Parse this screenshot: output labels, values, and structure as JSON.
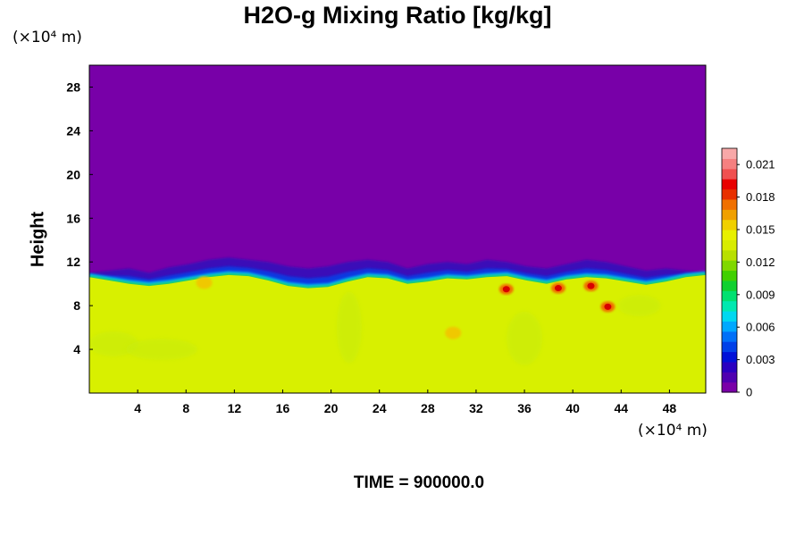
{
  "chart_data": {
    "type": "heatmap",
    "title": "H2O-g Mixing Ratio [kg/kg]",
    "xlabel": "",
    "ylabel": "Height",
    "x_unit": "(×10⁴ m)",
    "y_unit": "(×10⁴ m)",
    "xlim": [
      0,
      51
    ],
    "ylim": [
      0,
      30
    ],
    "x_ticks": [
      4,
      8,
      12,
      16,
      20,
      24,
      28,
      32,
      36,
      40,
      44,
      48
    ],
    "y_ticks": [
      4,
      8,
      12,
      16,
      20,
      24,
      28
    ],
    "colorbar": {
      "range": [
        0,
        0.0225
      ],
      "ticks": [
        "0",
        "0.003",
        "0.006",
        "0.009",
        "0.012",
        "0.015",
        "0.018",
        "0.021"
      ],
      "colors": [
        "#7a00a8",
        "#4f00b0",
        "#2a00c0",
        "#0010d8",
        "#0040e8",
        "#0070f8",
        "#00a8ff",
        "#00d8f0",
        "#00e8b0",
        "#00e070",
        "#10d030",
        "#40d000",
        "#80d800",
        "#b8e000",
        "#d8ec00",
        "#e8f000",
        "#f0d000",
        "#f0a000",
        "#f07000",
        "#e83000",
        "#e80000",
        "#f05050",
        "#f58080",
        "#f8a8a8"
      ]
    },
    "background_color": "#7800a8",
    "moist_layer_color": "#d8f000",
    "moist_top_height": [
      10.6,
      10.3,
      10.0,
      9.8,
      10.0,
      10.3,
      10.6,
      10.8,
      10.7,
      10.3,
      9.8,
      9.6,
      9.7,
      10.2,
      10.6,
      10.5,
      10.0,
      10.2,
      10.5,
      10.4,
      10.6,
      10.7,
      10.3,
      10.0,
      10.4,
      10.6,
      10.5,
      10.2,
      9.9,
      10.2,
      10.6,
      10.8
    ],
    "dry_layer_top_height": [
      11.0,
      11.2,
      11.4,
      11.0,
      11.5,
      11.8,
      12.2,
      12.4,
      12.2,
      12.0,
      11.6,
      11.4,
      11.6,
      12.0,
      12.2,
      12.0,
      11.4,
      11.8,
      12.0,
      11.8,
      12.2,
      12.0,
      11.6,
      11.4,
      11.8,
      12.2,
      12.0,
      11.6,
      11.2,
      11.4,
      11.2,
      11.0
    ],
    "red_spots": [
      {
        "x": 34.5,
        "y": 9.5
      },
      {
        "x": 38.8,
        "y": 9.6
      },
      {
        "x": 42.9,
        "y": 7.9
      },
      {
        "x": 41.5,
        "y": 9.8
      }
    ],
    "orange_spots": [
      {
        "x": 30.1,
        "y": 5.5
      },
      {
        "x": 9.5,
        "y": 10.1
      }
    ],
    "time_label": "TIME = 900000.0"
  }
}
